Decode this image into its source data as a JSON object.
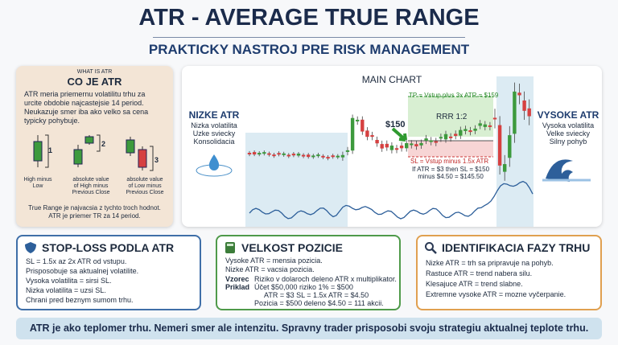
{
  "header": {
    "title": "ATR - AVERAGE TRUE RANGE",
    "subtitle": "PRAKTICKY NASTROJ PRE RISK MANAGEMENT"
  },
  "what_is": {
    "kicker": "WHAT IS ATR",
    "title": "CO JE ATR",
    "text": [
      "ATR meria priemernu volatilitu trhu za",
      "urcite obdobie najcastejsie 14 period.",
      "Neukazuje smer iba ako velko sa cena",
      "typicky pohybuje."
    ],
    "diagram": [
      {
        "number": "1",
        "caption": [
          "High minus",
          "Low"
        ]
      },
      {
        "number": "2",
        "caption": [
          "absolute value",
          "of High minus",
          "Previous Close"
        ]
      },
      {
        "number": "3",
        "caption": [
          "absolute value",
          "of Low minus",
          "Previous Close"
        ]
      }
    ],
    "footer": [
      "True Range je najvacsia z tychto troch hodnot.",
      "ATR je priemer TR za 14 period."
    ]
  },
  "main_chart": {
    "title": "MAIN CHART",
    "low_atr": {
      "title": "NIZKE ATR",
      "lines": [
        "Nizka volatilita",
        "Uzke sviecky",
        "Konsolidacia"
      ]
    },
    "high_atr": {
      "title": "VYSOKE ATR",
      "lines": [
        "Vysoka volatilita",
        "Velke sviecky",
        "Silny pohyb"
      ]
    },
    "tp_label": "TP = Vstup plus 3x ATR = $159",
    "rrr": "RRR 1:2",
    "entry": "$150",
    "sl_label": "SL = Vstup minus 1.5x ATR",
    "sl_example": [
      "If ATR = $3 then SL = $150",
      "minus $4.50 = $145.50"
    ]
  },
  "cards": [
    {
      "title": "STOP-LOSS PODLA ATR",
      "lines": [
        "SL = 1.5x az 2x ATR od vstupu.",
        "Prisposobuje sa aktualnej volatilite.",
        "Vysoka volatilita = sirsi SL.",
        "Nizka volatilita = uzsi SL.",
        "Chrani pred beznym sumom trhu."
      ]
    },
    {
      "title": "VELKOST POZICIE",
      "lines": [
        "Vysoke ATR = mensia pozicia.",
        "Nizke ATR = vacsia pozicia."
      ],
      "formula": {
        "label": "Vzorec",
        "text": "Riziko v dolaroch deleno ATR x multiplikator."
      },
      "example": {
        "label": "Priklad",
        "lines": [
          "Účet $50,000 riziko 1% = $500",
          "ATR = $3   SL = 1.5x ATR = $4.50",
          "Pozicia = $500 deleno $4.50 = 111 akcii."
        ]
      }
    },
    {
      "title": "IDENTIFIKACIA FAZY TRHU",
      "lines": [
        "Nizke ATR = trh sa pripravuje na pohyb.",
        "Rastuce ATR = trend nabera silu.",
        "Klesajuce ATR = trend slabne.",
        "Extremne vysoke ATR = mozne vyčerpanie."
      ]
    }
  ],
  "footer": "ATR je ako teplomer trhu. Nemeri smer ale intenzitu. Spravny trader prisposobi svoju strategiu aktualnej teplote trhu."
}
